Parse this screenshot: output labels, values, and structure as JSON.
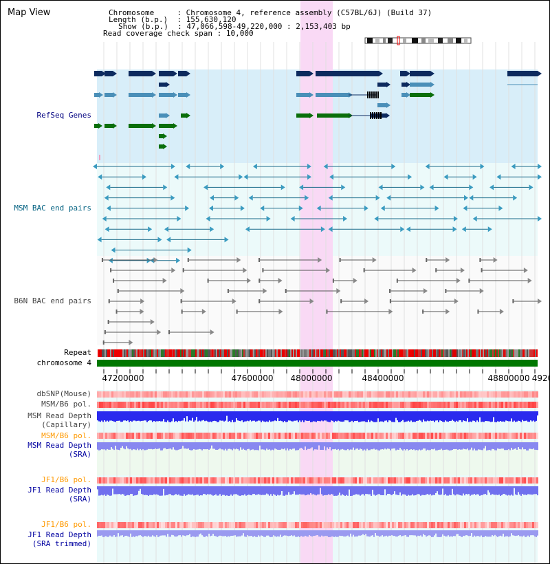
{
  "header": {
    "title": "Map View",
    "info_lines": [
      {
        "key": "Chromosome",
        "value": "Chromosome 4, reference assembly (C57BL/6J) (Build 37)"
      },
      {
        "key": "Length (b.p.)",
        "value": "155,630,120"
      },
      {
        "key": "Show (b.p.)",
        "value": "47,066,598-49,220,000 : 2,153,403 bp"
      },
      {
        "key": "Read coverage check span",
        "value": "10,000"
      }
    ]
  },
  "tracks": {
    "refseq": "RefSeq Genes",
    "msm_bac": "MSM BAC end pairs",
    "b6n_bac": "B6N BAC end pairs",
    "repeat": "Repeat",
    "chromosome": "chromosome 4",
    "dbsnp": "dbSNP(Mouse)",
    "msm_b6_pol_1": "MSM/B6 pol.",
    "msm_read_depth_cap_1": "MSM Read Depth",
    "msm_read_depth_cap_2": "(Capillary)",
    "msm_b6_pol_2": "MSM/B6 pol.",
    "msm_read_depth_sra_1": "MSM Read Depth",
    "msm_read_depth_sra_2": "(SRA)",
    "jf1_b6_pol_1": "JF1/B6 pol.",
    "jf1_read_depth_sra_1": "JF1 Read Depth",
    "jf1_read_depth_sra_2": "(SRA)",
    "jf1_b6_pol_2": "JF1/B6 pol.",
    "jf1_read_depth_trim_1": "JF1 Read Depth",
    "jf1_read_depth_trim_2": "(SRA trimmed)"
  },
  "axis": {
    "ticks": [
      "47200000",
      "47600000",
      "48000000",
      "48400000",
      "48800000",
      "4920"
    ]
  },
  "colors": {
    "highlight": "#f9d9f5",
    "refseq_bg": "#d8eef9",
    "bac_bg": "#ecfafa",
    "gene_dark": "#0d2a5e",
    "gene_mid": "#4a8fb8",
    "gene_green": "#0a6e0a",
    "chromosome_bar": "#007700"
  }
}
